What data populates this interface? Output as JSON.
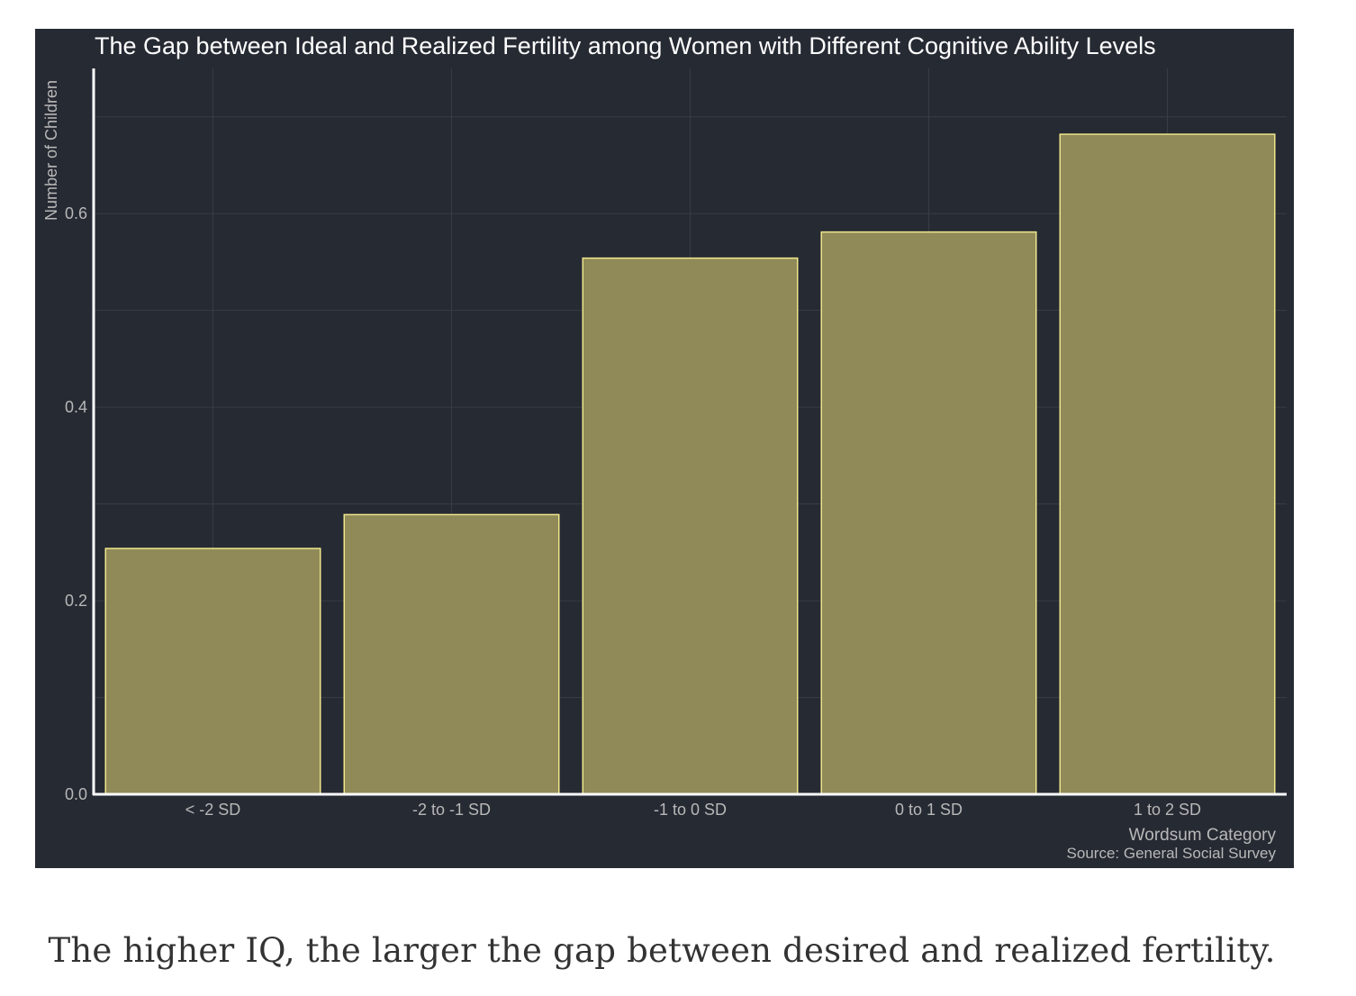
{
  "chart_data": {
    "type": "bar",
    "title": "The Gap between Ideal and Realized Fertility among Women with Different Cognitive Ability Levels",
    "xlabel": "Wordsum Category",
    "ylabel": "Number of Children",
    "caption_source": "Source: General Social Survey",
    "categories": [
      "< -2 SD",
      "-2 to -1 SD",
      "-1 to 0 SD",
      "0 to 1 SD",
      "1 to 2 SD"
    ],
    "values": [
      0.254,
      0.289,
      0.554,
      0.581,
      0.682
    ],
    "ylim": [
      0,
      0.75
    ],
    "yticks": [
      0.0,
      0.2,
      0.4,
      0.6
    ],
    "ytick_labels": [
      "0.0",
      "0.2",
      "0.4",
      "0.6"
    ],
    "grid": true,
    "colors": {
      "background": "#262a33",
      "bar_fill": "#8f8a58",
      "bar_edge": "#f0e68c",
      "axis": "#ffffff",
      "grid": "#383c45",
      "text": "#b8b8b8",
      "title": "#ffffff"
    }
  },
  "caption": "The higher IQ, the larger the gap between desired and realized fertility."
}
